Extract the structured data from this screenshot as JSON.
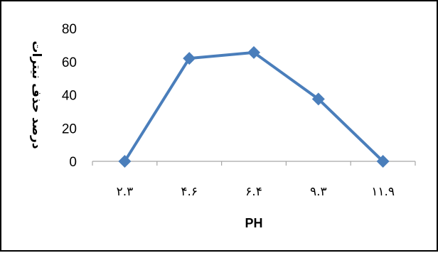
{
  "chart_data": {
    "type": "line",
    "title": "",
    "xlabel": "PH",
    "ylabel": "درصد حذف نیترات",
    "categories": [
      "۲.۳",
      "۴.۶",
      "۶.۴",
      "۹.۳",
      "۱۱.۹"
    ],
    "series": [
      {
        "values": [
          0,
          62,
          65.5,
          37.5,
          0
        ],
        "color": "#4a7ebb",
        "marker": "diamond"
      }
    ],
    "ylim": [
      0,
      80
    ],
    "yticks": [
      0,
      20,
      40,
      60,
      80
    ],
    "grid": false,
    "legend": "none"
  }
}
